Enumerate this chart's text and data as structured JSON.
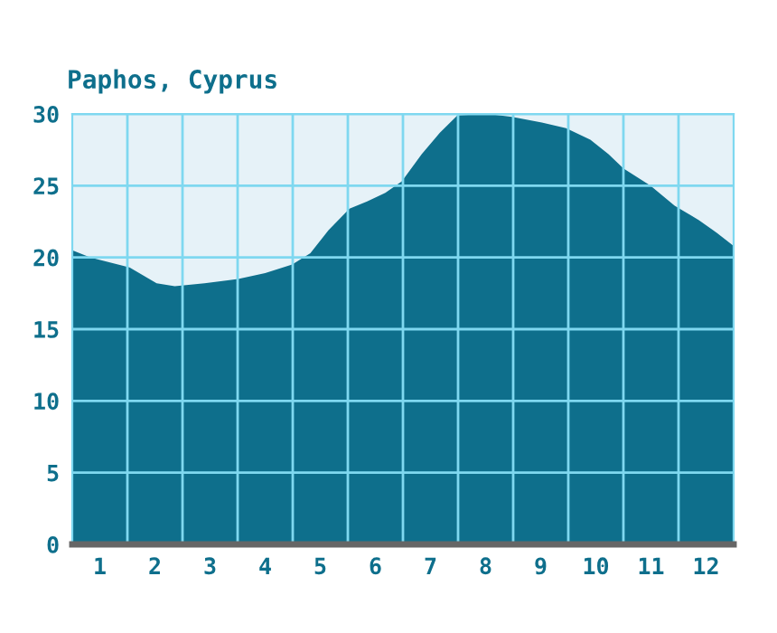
{
  "chart_data": {
    "type": "area",
    "title": "Paphos, Cyprus",
    "x": [
      0.5,
      0.83,
      1.54,
      2.03,
      2.36,
      2.9,
      3.51,
      4.0,
      4.49,
      4.82,
      5.15,
      5.53,
      5.85,
      6.18,
      6.48,
      6.84,
      7.17,
      7.49,
      8.04,
      8.48,
      9.02,
      9.46,
      9.9,
      10.23,
      10.5,
      10.99,
      11.43,
      11.87,
      12.2,
      12.5
    ],
    "series": [
      {
        "color": "#0e6f8c",
        "values": [
          20.5,
          20.0,
          19.3,
          18.2,
          18.0,
          18.2,
          18.5,
          18.9,
          19.5,
          20.3,
          21.9,
          23.4,
          23.9,
          24.5,
          25.3,
          27.2,
          28.7,
          29.9,
          30.0,
          29.8,
          29.4,
          29.0,
          28.2,
          27.2,
          26.2,
          25.0,
          23.6,
          22.6,
          21.7,
          20.8
        ]
      }
    ],
    "xlim": [
      0.5,
      12.5
    ],
    "xticks": [
      {
        "value": 1,
        "label": "1"
      },
      {
        "value": 1.5,
        "label": null
      },
      {
        "value": 2,
        "label": "2"
      },
      {
        "value": 2.5,
        "label": null
      },
      {
        "value": 3,
        "label": "3"
      },
      {
        "value": 3.5,
        "label": null
      },
      {
        "value": 4,
        "label": "4"
      },
      {
        "value": 4.5,
        "label": null
      },
      {
        "value": 5,
        "label": "5"
      },
      {
        "value": 5.5,
        "label": null
      },
      {
        "value": 6,
        "label": "6"
      },
      {
        "value": 6.5,
        "label": null
      },
      {
        "value": 7,
        "label": "7"
      },
      {
        "value": 7.5,
        "label": null
      },
      {
        "value": 8,
        "label": "8"
      },
      {
        "value": 8.5,
        "label": null
      },
      {
        "value": 9,
        "label": "9"
      },
      {
        "value": 9.5,
        "label": null
      },
      {
        "value": 10,
        "label": "10"
      },
      {
        "value": 10.5,
        "label": null
      },
      {
        "value": 11,
        "label": "11"
      },
      {
        "value": 11.5,
        "label": null
      },
      {
        "value": 12,
        "label": "12"
      }
    ],
    "ylim": [
      0,
      30
    ],
    "yticks": [
      0,
      5,
      10,
      15,
      20,
      25,
      30
    ],
    "grid": true
  }
}
